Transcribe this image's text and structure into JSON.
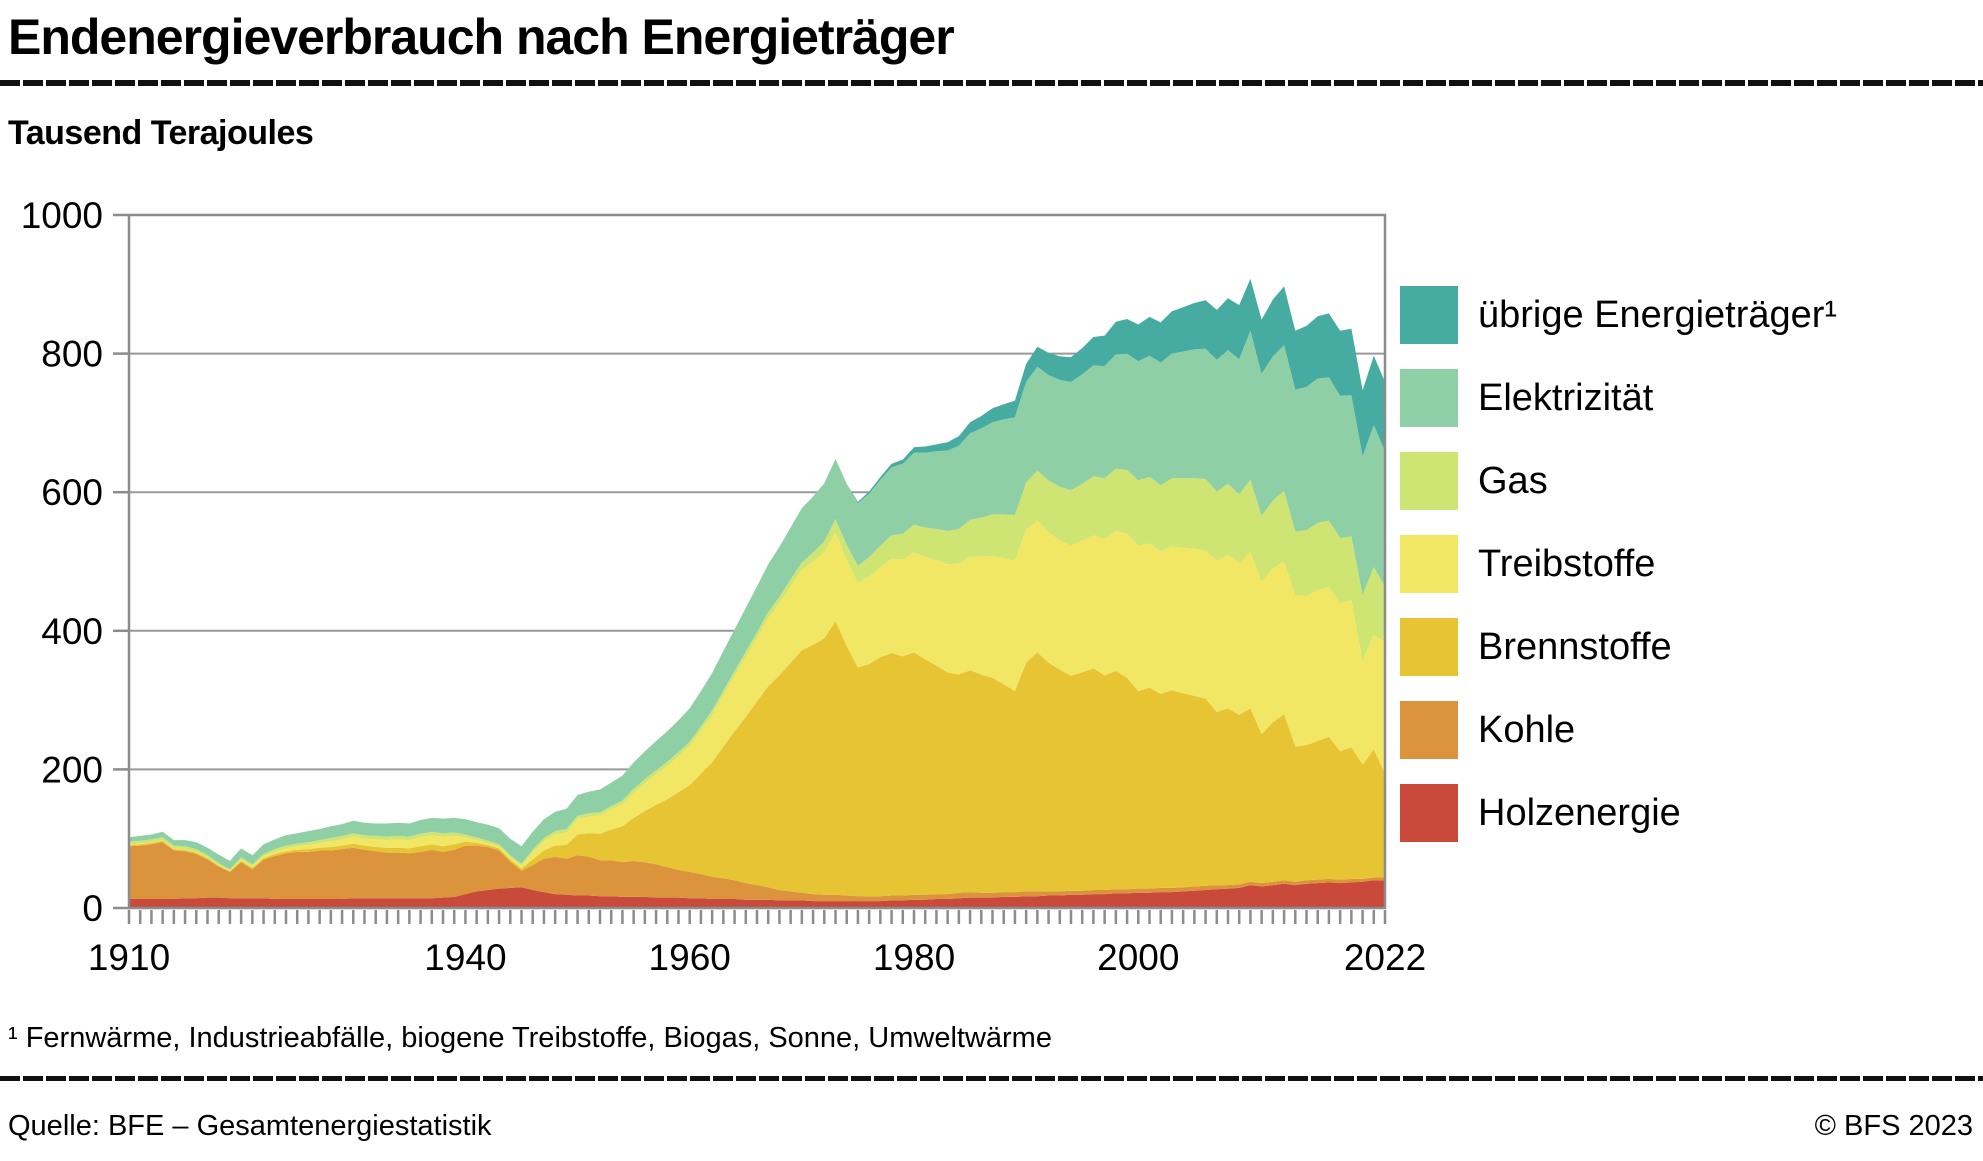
{
  "header": {
    "title": "Endenergieverbrauch nach Energieträger",
    "subtitle": "Tausend Terajoules"
  },
  "legend": [
    {
      "label": "übrige Energieträger¹",
      "color": "#46ACA1"
    },
    {
      "label": "Elektrizität",
      "color": "#8FCFA5"
    },
    {
      "label": "Gas",
      "color": "#CEE573"
    },
    {
      "label": "Treibstoffe",
      "color": "#F2E765"
    },
    {
      "label": "Brennstoffe",
      "color": "#E7C434"
    },
    {
      "label": "Kohle",
      "color": "#DC943C"
    },
    {
      "label": "Holzenergie",
      "color": "#C9493B"
    }
  ],
  "chart_data": {
    "type": "area",
    "stacked": true,
    "title": "Endenergieverbrauch nach Energieträger",
    "ylabel": "Tausend Terajoules",
    "xlabel": "",
    "ylim": [
      0,
      1000
    ],
    "yticks": [
      0,
      200,
      400,
      600,
      800,
      1000
    ],
    "xticks": [
      1910,
      1940,
      1960,
      1980,
      2000,
      2022
    ],
    "grid": true,
    "legend_position": "right",
    "axis_color": "#8c8c8c",
    "grid_color": "#999999",
    "years": [
      1910,
      1911,
      1912,
      1913,
      1914,
      1915,
      1916,
      1917,
      1918,
      1919,
      1920,
      1921,
      1922,
      1923,
      1924,
      1925,
      1926,
      1927,
      1928,
      1929,
      1930,
      1931,
      1932,
      1933,
      1934,
      1935,
      1936,
      1937,
      1938,
      1939,
      1940,
      1941,
      1942,
      1943,
      1944,
      1945,
      1946,
      1947,
      1948,
      1949,
      1950,
      1951,
      1952,
      1953,
      1954,
      1955,
      1956,
      1957,
      1958,
      1959,
      1960,
      1961,
      1962,
      1963,
      1964,
      1965,
      1966,
      1967,
      1968,
      1969,
      1970,
      1971,
      1972,
      1973,
      1974,
      1975,
      1976,
      1977,
      1978,
      1979,
      1980,
      1981,
      1982,
      1983,
      1984,
      1985,
      1986,
      1987,
      1988,
      1989,
      1990,
      1991,
      1992,
      1993,
      1994,
      1995,
      1996,
      1997,
      1998,
      1999,
      2000,
      2001,
      2002,
      2003,
      2004,
      2005,
      2006,
      2007,
      2008,
      2009,
      2010,
      2011,
      2012,
      2013,
      2014,
      2015,
      2016,
      2017,
      2018,
      2019,
      2020,
      2021,
      2022
    ],
    "series": [
      {
        "name": "Holzenergie",
        "color": "#C9493B",
        "values": [
          13,
          13,
          13,
          13,
          13,
          14,
          14,
          15,
          15,
          14,
          14,
          14,
          14,
          13,
          13,
          13,
          13,
          13,
          13,
          13,
          14,
          14,
          14,
          14,
          14,
          14,
          14,
          14,
          15,
          16,
          20,
          24,
          26,
          28,
          29,
          30,
          26,
          23,
          20,
          19,
          18,
          18,
          17,
          17,
          16,
          16,
          16,
          15,
          15,
          15,
          14,
          14,
          13,
          13,
          13,
          12,
          12,
          12,
          11,
          11,
          11,
          10,
          10,
          10,
          10,
          10,
          10,
          10,
          11,
          11,
          12,
          12,
          13,
          13,
          14,
          15,
          15,
          15,
          16,
          16,
          17,
          17,
          18,
          18,
          19,
          19,
          20,
          20,
          21,
          21,
          22,
          22,
          23,
          23,
          24,
          25,
          26,
          27,
          28,
          29,
          33,
          31,
          33,
          35,
          33,
          35,
          36,
          37,
          36,
          37,
          38,
          40,
          40
        ]
      },
      {
        "name": "Kohle",
        "color": "#DC943C",
        "values": [
          76,
          77,
          79,
          82,
          70,
          68,
          64,
          55,
          45,
          38,
          52,
          42,
          56,
          62,
          66,
          68,
          68,
          70,
          70,
          72,
          73,
          70,
          68,
          66,
          66,
          65,
          67,
          70,
          66,
          68,
          70,
          66,
          62,
          55,
          38,
          24,
          36,
          48,
          54,
          52,
          58,
          56,
          52,
          52,
          50,
          52,
          50,
          48,
          44,
          40,
          38,
          35,
          32,
          30,
          27,
          24,
          21,
          18,
          15,
          13,
          11,
          10,
          9,
          9,
          8,
          7,
          7,
          7,
          7,
          7,
          7,
          7,
          7,
          7,
          8,
          8,
          7,
          7,
          7,
          7,
          7,
          7,
          6,
          6,
          6,
          6,
          6,
          6,
          6,
          6,
          6,
          6,
          6,
          6,
          6,
          6,
          6,
          6,
          5,
          5,
          5,
          5,
          5,
          5,
          5,
          5,
          5,
          5,
          5,
          5,
          4,
          4,
          4
        ]
      },
      {
        "name": "Brennstoffe",
        "color": "#E7C434",
        "values": [
          2,
          2,
          2,
          2,
          2,
          2,
          2,
          2,
          1,
          1,
          2,
          2,
          2,
          3,
          3,
          3,
          4,
          4,
          5,
          5,
          6,
          6,
          6,
          7,
          7,
          7,
          8,
          8,
          8,
          8,
          6,
          4,
          3,
          3,
          3,
          3,
          8,
          12,
          16,
          20,
          30,
          34,
          38,
          44,
          52,
          62,
          74,
          86,
          98,
          112,
          125,
          145,
          165,
          190,
          215,
          240,
          265,
          290,
          310,
          330,
          350,
          360,
          370,
          395,
          360,
          330,
          335,
          345,
          350,
          345,
          350,
          340,
          330,
          320,
          315,
          320,
          315,
          310,
          300,
          290,
          330,
          345,
          330,
          320,
          310,
          315,
          320,
          310,
          315,
          305,
          285,
          290,
          280,
          285,
          280,
          275,
          270,
          250,
          255,
          245,
          250,
          215,
          230,
          240,
          195,
          195,
          200,
          205,
          185,
          190,
          165,
          185,
          150
        ]
      },
      {
        "name": "Treibstoffe",
        "color": "#F2E765",
        "values": [
          1,
          1,
          1,
          1,
          1,
          1,
          1,
          1,
          1,
          1,
          2,
          2,
          3,
          3,
          4,
          5,
          6,
          7,
          8,
          9,
          10,
          10,
          11,
          11,
          12,
          12,
          13,
          13,
          14,
          12,
          6,
          4,
          3,
          3,
          3,
          4,
          10,
          14,
          16,
          18,
          22,
          24,
          26,
          29,
          32,
          36,
          40,
          44,
          48,
          52,
          57,
          62,
          68,
          74,
          80,
          86,
          92,
          98,
          104,
          110,
          116,
          120,
          124,
          128,
          124,
          122,
          126,
          130,
          136,
          140,
          144,
          148,
          152,
          156,
          160,
          164,
          170,
          176,
          182,
          188,
          192,
          190,
          188,
          186,
          188,
          190,
          192,
          196,
          202,
          208,
          210,
          208,
          206,
          208,
          210,
          212,
          214,
          218,
          222,
          218,
          225,
          220,
          222,
          220,
          218,
          215,
          218,
          216,
          214,
          212,
          150,
          165,
          190
        ]
      },
      {
        "name": "Gas",
        "color": "#CEE573",
        "values": [
          4,
          4,
          4,
          4,
          4,
          4,
          4,
          3,
          3,
          2,
          3,
          3,
          3,
          4,
          4,
          4,
          4,
          4,
          5,
          5,
          5,
          5,
          5,
          5,
          5,
          5,
          5,
          5,
          5,
          5,
          4,
          4,
          3,
          3,
          3,
          3,
          4,
          4,
          5,
          5,
          5,
          5,
          5,
          5,
          5,
          6,
          6,
          6,
          6,
          6,
          6,
          6,
          7,
          7,
          7,
          8,
          8,
          9,
          9,
          10,
          11,
          13,
          16,
          19,
          22,
          25,
          28,
          31,
          34,
          37,
          40,
          42,
          45,
          48,
          50,
          53,
          56,
          60,
          63,
          66,
          68,
          72,
          75,
          78,
          80,
          82,
          85,
          88,
          90,
          92,
          94,
          96,
          95,
          98,
          100,
          102,
          103,
          100,
          102,
          100,
          105,
          95,
          98,
          102,
          92,
          95,
          97,
          96,
          94,
          92,
          95,
          98,
          80
        ]
      },
      {
        "name": "Elektrizität",
        "color": "#8FCFA5",
        "values": [
          6,
          7,
          7,
          8,
          8,
          9,
          10,
          11,
          12,
          12,
          13,
          13,
          14,
          14,
          15,
          15,
          16,
          16,
          17,
          17,
          18,
          18,
          18,
          19,
          19,
          19,
          20,
          20,
          21,
          21,
          22,
          22,
          23,
          23,
          24,
          25,
          26,
          27,
          28,
          29,
          30,
          31,
          33,
          34,
          36,
          38,
          40,
          42,
          44,
          46,
          48,
          51,
          54,
          57,
          60,
          63,
          66,
          69,
          72,
          75,
          78,
          81,
          84,
          87,
          88,
          90,
          92,
          95,
          98,
          101,
          104,
          108,
          112,
          116,
          120,
          125,
          129,
          133,
          137,
          141,
          145,
          150,
          152,
          154,
          156,
          158,
          160,
          162,
          165,
          168,
          172,
          175,
          177,
          180,
          183,
          186,
          188,
          190,
          193,
          195,
          215,
          205,
          208,
          210,
          205,
          207,
          208,
          207,
          205,
          204,
          200,
          205,
          195
        ]
      },
      {
        "name": "übrige Energieträger",
        "color": "#46ACA1",
        "values": [
          0,
          0,
          0,
          0,
          0,
          0,
          0,
          0,
          0,
          0,
          0,
          0,
          0,
          0,
          0,
          0,
          0,
          0,
          0,
          0,
          0,
          0,
          0,
          0,
          0,
          0,
          0,
          0,
          0,
          0,
          0,
          0,
          0,
          0,
          0,
          0,
          0,
          0,
          0,
          0,
          0,
          0,
          0,
          0,
          0,
          0,
          0,
          0,
          0,
          0,
          0,
          0,
          0,
          0,
          0,
          0,
          0,
          0,
          0,
          0,
          0,
          0,
          0,
          0,
          0,
          2,
          3,
          4,
          5,
          6,
          8,
          9,
          10,
          12,
          14,
          16,
          18,
          20,
          22,
          24,
          26,
          29,
          32,
          34,
          36,
          38,
          41,
          44,
          47,
          50,
          53,
          56,
          58,
          61,
          64,
          67,
          70,
          72,
          75,
          78,
          75,
          78,
          82,
          85,
          85,
          88,
          90,
          92,
          94,
          96,
          95,
          100,
          100
        ]
      }
    ]
  },
  "footer": {
    "footnote": "¹ Fernwärme, Industrieabfälle, biogene Treibstoffe, Biogas, Sonne, Umweltwärme",
    "source": "Quelle: BFE – Gesamtenergiestatistik",
    "copyright": "© BFS 2023"
  }
}
